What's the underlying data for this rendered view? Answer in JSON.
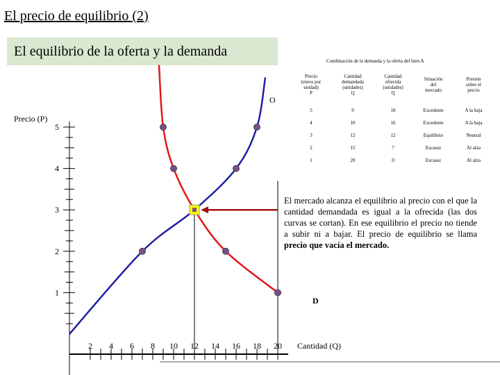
{
  "header": {
    "title": "El precio de equilibrio (2)",
    "subtitle": "El equilibrio de la oferta y la demanda"
  },
  "table": {
    "caption": "Combinación de la demanda y la oferta del bien A",
    "headers": [
      [
        "Precio",
        "(euros por",
        "unidad)",
        "P"
      ],
      [
        "Cantidad",
        "demandada",
        "(unidades)",
        "Q"
      ],
      [
        "Cantidad",
        "ofrecida",
        "(unidades)",
        "Q"
      ],
      [
        "Situación",
        "del",
        "mercado"
      ],
      [
        "Presión",
        "sobre el",
        "precio"
      ]
    ],
    "rows": [
      [
        "5",
        "9",
        "18",
        "Excedente",
        "A la baja"
      ],
      [
        "4",
        "10",
        "16",
        "Excedente",
        "A la baja"
      ],
      [
        "3",
        "12",
        "12",
        "Equilibrio",
        "Neutral"
      ],
      [
        "2",
        "15",
        "7",
        "Escasez",
        "Al alza"
      ],
      [
        "1",
        "20",
        "0",
        "Escasez",
        "Al alza"
      ]
    ]
  },
  "explanation": {
    "text_before": "El mercado alcanza el equilibrio al precio con el que la cantidad demandada es igual a la ofrecida (las dos curvas se cortan). En ese equilibrio el precio no tiende a subir ni a bajar. El precio de equilibrio se llama ",
    "text_bold": "precio que vacía el mercado."
  },
  "colors": {
    "supply_curve": "#1f1fa3",
    "demand_curve": "#e01818",
    "points": "#7a4f8a",
    "equilibrium_point": "#ffff00",
    "arrow": "#a01010",
    "subtitle_bg": "#d9e8d0"
  },
  "chart_data": {
    "type": "line",
    "ylabel": "Precio (P)",
    "xlabel": "Cantidad (Q)",
    "xlim": [
      0,
      20
    ],
    "ylim": [
      0,
      5
    ],
    "x_ticks": [
      2,
      4,
      6,
      8,
      10,
      12,
      14,
      16,
      18,
      20
    ],
    "y_ticks": [
      1,
      2,
      3,
      4,
      5
    ],
    "series": [
      {
        "name": "O",
        "points": [
          [
            0,
            0
          ],
          [
            7,
            2
          ],
          [
            12,
            3
          ],
          [
            16,
            4
          ],
          [
            18,
            5
          ]
        ]
      },
      {
        "name": "D",
        "points": [
          [
            9,
            5
          ],
          [
            10,
            4
          ],
          [
            12,
            3
          ],
          [
            15,
            2
          ],
          [
            20,
            1
          ]
        ]
      }
    ],
    "equilibrium": {
      "x": 12,
      "y": 3
    }
  }
}
